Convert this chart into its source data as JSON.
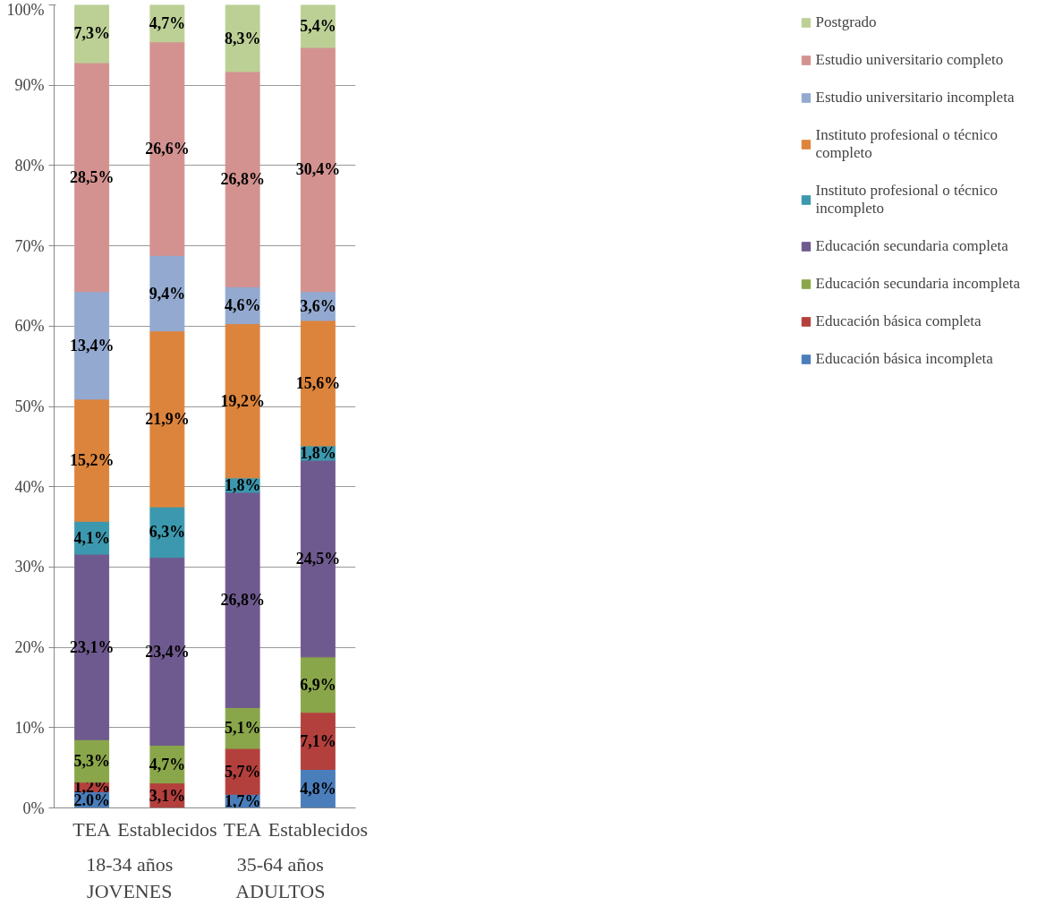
{
  "chart_data": {
    "type": "bar",
    "stacked": true,
    "categories": [
      "TEA",
      "Establecidos",
      "TEA",
      "Establecidos"
    ],
    "annotations": [
      "18-34 años",
      "JOVENES",
      "35-64 años",
      "ADULTOS"
    ],
    "ylim": [
      0,
      100
    ],
    "yticks": [
      {
        "value": 0,
        "label": "0%"
      },
      {
        "value": 10,
        "label": "10%"
      },
      {
        "value": 20,
        "label": "20%"
      },
      {
        "value": 30,
        "label": "30%"
      },
      {
        "value": 40,
        "label": "40%"
      },
      {
        "value": 50,
        "label": "50%"
      },
      {
        "value": 60,
        "label": "60%"
      },
      {
        "value": 70,
        "label": "70%"
      },
      {
        "value": 80,
        "label": "80%"
      },
      {
        "value": 90,
        "label": "90%"
      },
      {
        "value": 100,
        "label": "100%"
      }
    ],
    "grid": "y",
    "legend": "right",
    "series": [
      {
        "name": "Educación básica incompleta",
        "color": "#4a7ebb",
        "values": [
          2.0,
          null,
          1.7,
          4.8
        ],
        "value_labels": [
          "2.0%",
          null,
          "1,7%",
          "4,8%"
        ]
      },
      {
        "name": "Educación básica completa",
        "color": "#b3403d",
        "values": [
          1.2,
          3.1,
          5.7,
          7.1
        ],
        "value_labels": [
          "1,2%",
          "3,1%",
          "5,7%",
          "7,1%"
        ]
      },
      {
        "name": "Educación secundaria incompleta",
        "color": "#8aa64a",
        "values": [
          5.3,
          4.7,
          5.1,
          6.9
        ],
        "value_labels": [
          "5,3%",
          "4,7%",
          "5,1%",
          "6,9%"
        ]
      },
      {
        "name": "Educación secundaria completa",
        "color": "#6f5a8f",
        "values": [
          23.1,
          23.4,
          26.8,
          24.5
        ],
        "value_labels": [
          "23,1%",
          "23,4%",
          "26,8%",
          "24,5%"
        ]
      },
      {
        "name": "Instituto profesional o técnico incompleto",
        "color": "#3c98ae",
        "values": [
          4.1,
          6.3,
          1.8,
          1.8
        ],
        "value_labels": [
          "4,1%",
          "6,3%",
          "1,8%",
          "1,8%"
        ]
      },
      {
        "name": "Instituto profesional o técnico completo",
        "color": "#dd843c",
        "values": [
          15.2,
          21.9,
          19.2,
          15.6
        ],
        "value_labels": [
          "15,2%",
          "21,9%",
          "19,2%",
          "15,6%"
        ]
      },
      {
        "name": "Estudio universitario incompleta",
        "color": "#93a9d0",
        "values": [
          13.4,
          9.4,
          4.6,
          3.6
        ],
        "value_labels": [
          "13,4%",
          "9,4%",
          "4,6%",
          "3,6%"
        ]
      },
      {
        "name": "Estudio universitario completo",
        "color": "#d39290",
        "values": [
          28.5,
          26.6,
          26.8,
          30.4
        ],
        "value_labels": [
          "28,5%",
          "26,6%",
          "26,8%",
          "30,4%"
        ]
      },
      {
        "name": "Postgrado",
        "color": "#bcd096",
        "values": [
          7.3,
          4.7,
          8.3,
          5.4
        ],
        "value_labels": [
          "7,3%",
          "4,7%",
          "8,3%",
          "5,4%"
        ]
      }
    ]
  }
}
